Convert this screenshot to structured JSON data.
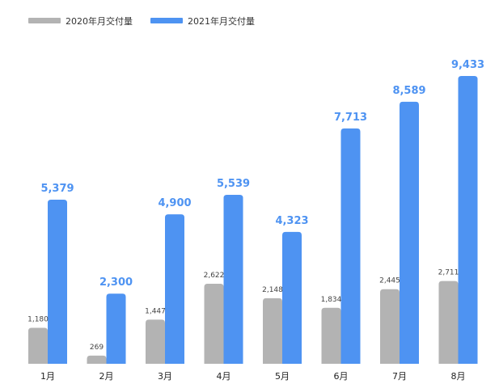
{
  "chart_data": {
    "type": "bar",
    "categories": [
      "1月",
      "2月",
      "3月",
      "4月",
      "5月",
      "6月",
      "7月",
      "8月"
    ],
    "series": [
      {
        "name": "2020年月交付量",
        "values": [
          1180,
          269,
          1447,
          2622,
          2148,
          1834,
          2445,
          2711
        ],
        "labels": [
          "1,180",
          "269",
          "1,447",
          "2,622",
          "2,148",
          "1,834",
          "2,445",
          "2,711"
        ],
        "color": "#b3b3b3"
      },
      {
        "name": "2021年月交付量",
        "values": [
          5379,
          2300,
          4900,
          5539,
          4323,
          7713,
          8589,
          9433
        ],
        "labels": [
          "5,379",
          "2,300",
          "4,900",
          "5,539",
          "4,323",
          "7,713",
          "8,589",
          "9,433"
        ],
        "color": "#4e93f2"
      }
    ],
    "ylim": [
      0,
      9433
    ],
    "grid": false,
    "legend": "top-left"
  }
}
